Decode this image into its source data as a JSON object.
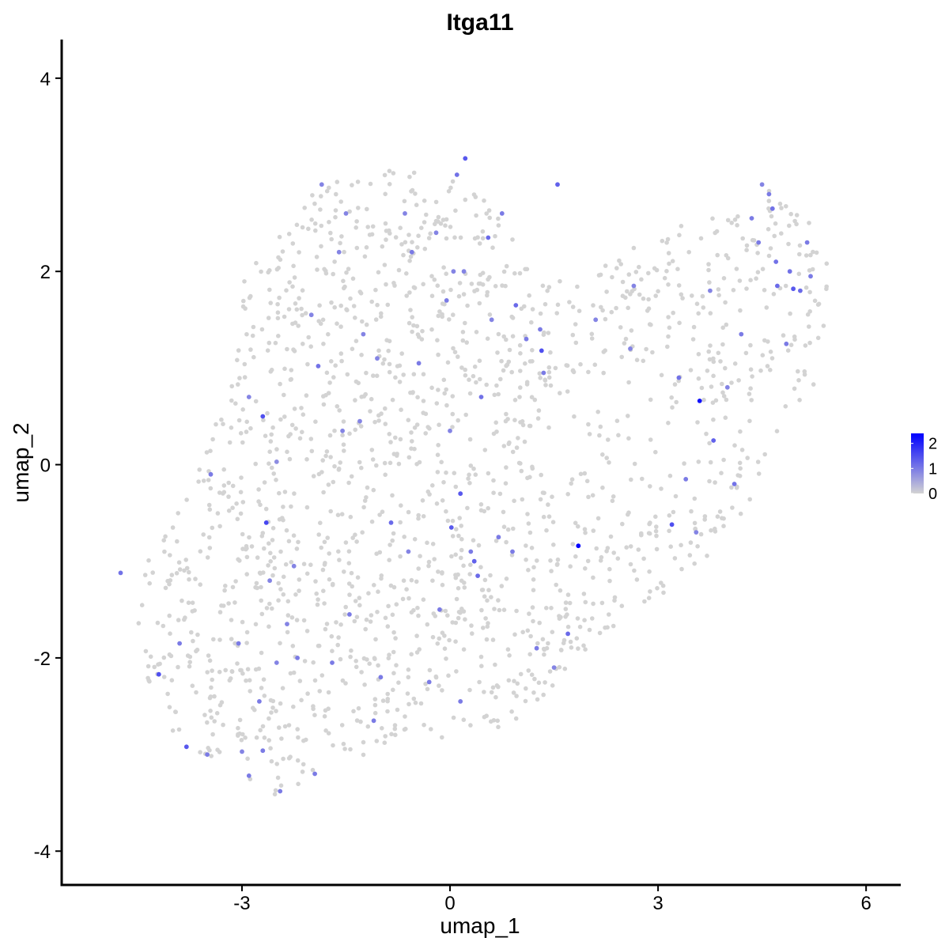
{
  "chart_data": {
    "type": "scatter",
    "title": "Itga11",
    "xlabel": "umap_1",
    "ylabel": "umap_2",
    "xlim": [
      -5.6,
      6.5
    ],
    "ylim": [
      -4.35,
      4.4
    ],
    "x_ticks": [
      -3,
      0,
      3,
      6
    ],
    "x_tick_labels": [
      "-3",
      "0",
      "3",
      "6"
    ],
    "y_ticks": [
      -4,
      -2,
      0,
      2,
      4
    ],
    "y_tick_labels": [
      "-4",
      "-2",
      "0",
      "2",
      "4"
    ],
    "grid": false,
    "legend": {
      "position": "right",
      "type": "colorbar",
      "ticks": [
        0,
        1,
        2
      ],
      "tick_labels": [
        "0",
        "1",
        "2"
      ],
      "range": [
        0,
        2.4
      ],
      "colors": [
        "#d3d3d3",
        "#0000ff"
      ]
    },
    "baseline_color": "#d3d3d3",
    "expressing_points": [
      {
        "x": -4.75,
        "y": -1.12,
        "v": 1.1
      },
      {
        "x": -4.2,
        "y": -2.17,
        "v": 1.5
      },
      {
        "x": -3.9,
        "y": -1.85,
        "v": 1.0
      },
      {
        "x": -3.8,
        "y": -2.92,
        "v": 1.4
      },
      {
        "x": -3.5,
        "y": -3.0,
        "v": 1.0
      },
      {
        "x": -3.45,
        "y": -0.1,
        "v": 1.0
      },
      {
        "x": -3.05,
        "y": -1.85,
        "v": 1.0
      },
      {
        "x": -3.0,
        "y": -2.97,
        "v": 0.9
      },
      {
        "x": -2.9,
        "y": 0.7,
        "v": 0.9
      },
      {
        "x": -2.9,
        "y": -3.22,
        "v": 1.0
      },
      {
        "x": -2.75,
        "y": -2.45,
        "v": 1.0
      },
      {
        "x": -2.7,
        "y": 0.5,
        "v": 1.5
      },
      {
        "x": -2.7,
        "y": -2.96,
        "v": 1.0
      },
      {
        "x": -2.65,
        "y": -0.6,
        "v": 1.6
      },
      {
        "x": -2.6,
        "y": -1.2,
        "v": 0.9
      },
      {
        "x": -2.5,
        "y": -2.05,
        "v": 0.9
      },
      {
        "x": -2.5,
        "y": 0.03,
        "v": 0.8
      },
      {
        "x": -2.45,
        "y": -3.38,
        "v": 1.0
      },
      {
        "x": -2.35,
        "y": -1.65,
        "v": 0.9
      },
      {
        "x": -2.25,
        "y": -1.05,
        "v": 0.9
      },
      {
        "x": -2.2,
        "y": -2.0,
        "v": 1.0
      },
      {
        "x": -2.0,
        "y": 1.55,
        "v": 0.9
      },
      {
        "x": -1.95,
        "y": -3.2,
        "v": 1.0
      },
      {
        "x": -1.9,
        "y": 1.02,
        "v": 1.1
      },
      {
        "x": -1.85,
        "y": 2.9,
        "v": 0.9
      },
      {
        "x": -1.7,
        "y": -2.05,
        "v": 1.0
      },
      {
        "x": -1.6,
        "y": 2.2,
        "v": 0.9
      },
      {
        "x": -1.55,
        "y": 0.35,
        "v": 0.9
      },
      {
        "x": -1.5,
        "y": 2.6,
        "v": 0.9
      },
      {
        "x": -1.45,
        "y": -1.55,
        "v": 1.0
      },
      {
        "x": -1.3,
        "y": 0.45,
        "v": 0.9
      },
      {
        "x": -1.25,
        "y": 1.35,
        "v": 0.9
      },
      {
        "x": -1.1,
        "y": -2.65,
        "v": 1.0
      },
      {
        "x": -1.05,
        "y": 1.1,
        "v": 0.9
      },
      {
        "x": -1.0,
        "y": -2.2,
        "v": 1.0
      },
      {
        "x": -0.85,
        "y": -0.6,
        "v": 1.2
      },
      {
        "x": -0.65,
        "y": 2.6,
        "v": 0.9
      },
      {
        "x": -0.6,
        "y": -0.9,
        "v": 0.9
      },
      {
        "x": -0.55,
        "y": 2.2,
        "v": 1.0
      },
      {
        "x": -0.45,
        "y": 1.05,
        "v": 1.0
      },
      {
        "x": -0.3,
        "y": -2.25,
        "v": 1.0
      },
      {
        "x": -0.2,
        "y": 2.4,
        "v": 0.9
      },
      {
        "x": -0.15,
        "y": -1.5,
        "v": 1.0
      },
      {
        "x": -0.05,
        "y": 1.7,
        "v": 1.0
      },
      {
        "x": 0.0,
        "y": 0.35,
        "v": 0.9
      },
      {
        "x": 0.02,
        "y": -0.65,
        "v": 1.4
      },
      {
        "x": 0.05,
        "y": 2.0,
        "v": 0.9
      },
      {
        "x": 0.1,
        "y": 3.0,
        "v": 1.1
      },
      {
        "x": 0.15,
        "y": -0.3,
        "v": 1.4
      },
      {
        "x": 0.15,
        "y": -2.45,
        "v": 1.0
      },
      {
        "x": 0.2,
        "y": 2.0,
        "v": 0.9
      },
      {
        "x": 0.22,
        "y": 3.17,
        "v": 1.4
      },
      {
        "x": 0.3,
        "y": -0.9,
        "v": 1.0
      },
      {
        "x": 0.35,
        "y": -1.0,
        "v": 1.3
      },
      {
        "x": 0.4,
        "y": -1.15,
        "v": 1.2
      },
      {
        "x": 0.45,
        "y": 0.7,
        "v": 1.1
      },
      {
        "x": 0.55,
        "y": 2.35,
        "v": 1.2
      },
      {
        "x": 0.6,
        "y": 1.5,
        "v": 0.9
      },
      {
        "x": 0.7,
        "y": -0.75,
        "v": 1.0
      },
      {
        "x": 0.75,
        "y": 2.6,
        "v": 1.0
      },
      {
        "x": 0.9,
        "y": -0.9,
        "v": 1.0
      },
      {
        "x": 0.95,
        "y": 1.65,
        "v": 1.2
      },
      {
        "x": 1.1,
        "y": 1.3,
        "v": 1.0
      },
      {
        "x": 1.25,
        "y": -1.9,
        "v": 1.0
      },
      {
        "x": 1.3,
        "y": 1.4,
        "v": 1.0
      },
      {
        "x": 1.32,
        "y": 1.18,
        "v": 1.5
      },
      {
        "x": 1.35,
        "y": 0.95,
        "v": 1.0
      },
      {
        "x": 1.5,
        "y": -2.1,
        "v": 0.9
      },
      {
        "x": 1.55,
        "y": 2.9,
        "v": 1.3
      },
      {
        "x": 1.7,
        "y": -1.75,
        "v": 1.2
      },
      {
        "x": 1.85,
        "y": -0.84,
        "v": 2.4
      },
      {
        "x": 2.1,
        "y": 1.5,
        "v": 0.9
      },
      {
        "x": 2.6,
        "y": 1.2,
        "v": 0.9
      },
      {
        "x": 2.65,
        "y": 1.85,
        "v": 0.9
      },
      {
        "x": 3.2,
        "y": -0.62,
        "v": 1.5
      },
      {
        "x": 3.3,
        "y": 0.9,
        "v": 1.1
      },
      {
        "x": 3.4,
        "y": -0.15,
        "v": 1.0
      },
      {
        "x": 3.55,
        "y": -0.7,
        "v": 0.9
      },
      {
        "x": 3.6,
        "y": 0.66,
        "v": 2.2
      },
      {
        "x": 3.75,
        "y": 1.8,
        "v": 0.9
      },
      {
        "x": 3.8,
        "y": 0.25,
        "v": 1.3
      },
      {
        "x": 4.0,
        "y": 0.8,
        "v": 0.9
      },
      {
        "x": 4.1,
        "y": -0.2,
        "v": 1.1
      },
      {
        "x": 4.2,
        "y": 1.35,
        "v": 1.0
      },
      {
        "x": 4.35,
        "y": 2.55,
        "v": 1.0
      },
      {
        "x": 4.45,
        "y": 2.3,
        "v": 1.0
      },
      {
        "x": 4.5,
        "y": 2.9,
        "v": 0.9
      },
      {
        "x": 4.6,
        "y": 2.8,
        "v": 1.0
      },
      {
        "x": 4.65,
        "y": 2.65,
        "v": 1.1
      },
      {
        "x": 4.7,
        "y": 2.1,
        "v": 1.1
      },
      {
        "x": 4.72,
        "y": 1.85,
        "v": 1.2
      },
      {
        "x": 4.85,
        "y": 1.25,
        "v": 1.0
      },
      {
        "x": 4.9,
        "y": 2.0,
        "v": 1.1
      },
      {
        "x": 4.95,
        "y": 1.82,
        "v": 1.4
      },
      {
        "x": 5.05,
        "y": 1.8,
        "v": 1.2
      },
      {
        "x": 5.15,
        "y": 2.3,
        "v": 1.0
      },
      {
        "x": 5.2,
        "y": 1.95,
        "v": 1.0
      }
    ]
  }
}
